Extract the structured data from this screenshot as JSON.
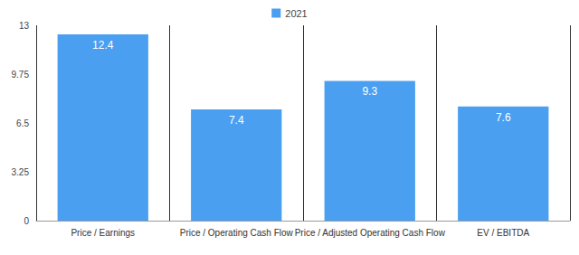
{
  "chart_data": {
    "type": "bar",
    "categories": [
      "Price / Earnings",
      "Price / Operating Cash Flow",
      "Price / Adjusted Operating Cash Flow",
      "EV / EBITDA"
    ],
    "series": [
      {
        "name": "2021",
        "color": "#4a9ff0",
        "values": [
          12.4,
          7.4,
          9.3,
          7.6
        ]
      }
    ],
    "ylim": [
      0,
      13
    ],
    "yticks": [
      0,
      3.25,
      6.5,
      9.75,
      13
    ],
    "grid": "x",
    "legend": "top",
    "data_labels": true
  }
}
